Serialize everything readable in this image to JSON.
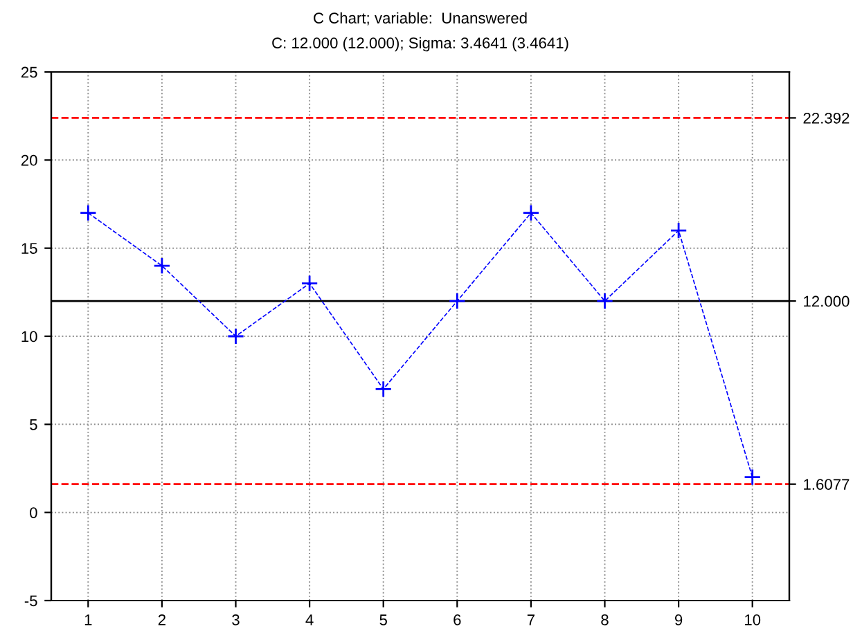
{
  "chart_data": {
    "type": "line",
    "title": "C Chart; variable:  Unanswered",
    "subtitle": "C: 12.000 (12.000); Sigma: 3.4641 (3.4641)",
    "categories": [
      "1",
      "2",
      "3",
      "4",
      "5",
      "6",
      "7",
      "8",
      "9",
      "10"
    ],
    "series": [
      {
        "color": "#0000ff",
        "values": [
          17,
          14,
          10,
          13,
          7,
          12,
          17,
          12,
          16,
          2
        ]
      }
    ],
    "ylim": [
      -5,
      25
    ],
    "yticks": [
      -5,
      0,
      5,
      10,
      15,
      20,
      25
    ],
    "grid": true,
    "marker": "cross",
    "line_style": "dashed",
    "legend": false,
    "ref_lines": [
      {
        "axis": "y",
        "value": 22.392,
        "label": "22.392",
        "color": "#ff0000",
        "line_style": "dashed"
      },
      {
        "axis": "y",
        "value": 12.0,
        "label": "12.000",
        "color": "#000000",
        "line_style": "solid"
      },
      {
        "axis": "y",
        "value": 1.6077,
        "label": "1.6077",
        "color": "#ff0000",
        "line_style": "dashed"
      }
    ]
  }
}
